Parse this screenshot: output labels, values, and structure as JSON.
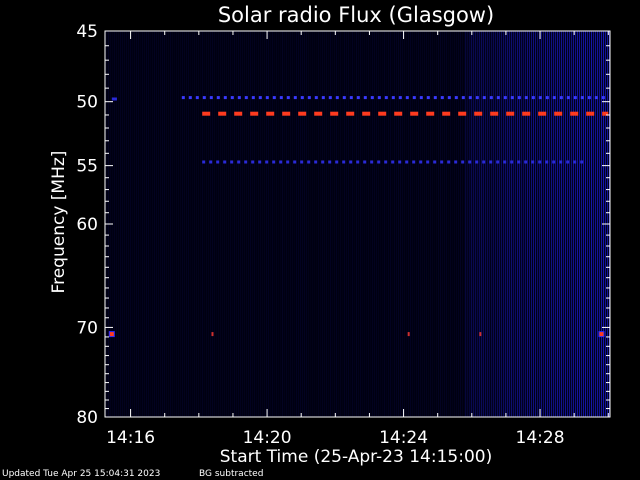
{
  "chart_data": {
    "type": "heatmap",
    "title": "Solar radio Flux (Glasgow)",
    "xlabel": "Start Time (25-Apr-23 14:15:00)",
    "ylabel": "Frequency [MHz]",
    "x_unit": "minutes after 14:00",
    "xlim": [
      15.25,
      30.05
    ],
    "ylim": [
      45,
      80
    ],
    "y_scale": "log",
    "x_ticks": [
      {
        "value": 16,
        "label": "14:16"
      },
      {
        "value": 20,
        "label": "14:20"
      },
      {
        "value": 24,
        "label": "14:24"
      },
      {
        "value": 28,
        "label": "14:28"
      }
    ],
    "y_ticks": [
      {
        "value": 45,
        "label": "45"
      },
      {
        "value": 50,
        "label": "50"
      },
      {
        "value": 55,
        "label": "55"
      },
      {
        "value": 60,
        "label": "60"
      },
      {
        "value": 70,
        "label": "70"
      },
      {
        "value": 80,
        "label": "80"
      }
    ],
    "background_color": "#000010",
    "noise_color": "#1a1acc",
    "hot_color": "#ff3b1f",
    "features": {
      "noise_onset_minute": 25.8,
      "interference_bands": [
        {
          "freq": 50.9,
          "x_start": 18.1,
          "x_end": 30.0,
          "intensity": "high",
          "pattern": "dashed"
        },
        {
          "freq": 49.7,
          "x_start": 17.5,
          "x_end": 30.0,
          "intensity": "medium",
          "pattern": "dashed"
        },
        {
          "freq": 54.7,
          "x_start": 18.1,
          "x_end": 29.3,
          "intensity": "low",
          "pattern": "dashed"
        },
        {
          "freq": 49.8,
          "x_start": 15.45,
          "x_end": 15.6,
          "intensity": "low",
          "pattern": "solid"
        }
      ],
      "spots": [
        {
          "minute": 15.45,
          "freq": 70.7,
          "intensity": "high"
        },
        {
          "minute": 18.4,
          "freq": 70.7,
          "intensity": "medium"
        },
        {
          "minute": 24.15,
          "freq": 70.7,
          "intensity": "medium"
        },
        {
          "minute": 26.25,
          "freq": 70.7,
          "intensity": "medium"
        },
        {
          "minute": 29.8,
          "freq": 70.7,
          "intensity": "high"
        }
      ]
    }
  },
  "footer": {
    "updated": "Updated Tue Apr 25 15:04:31 2023",
    "note": "BG subtracted"
  }
}
